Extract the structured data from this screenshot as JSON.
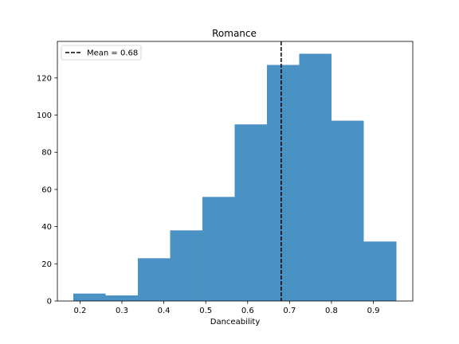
{
  "chart_data": {
    "type": "histogram",
    "title": "Romance",
    "xlabel": "Danceability",
    "ylabel": "",
    "xlim": [
      0.146,
      0.994
    ],
    "ylim": [
      0,
      139.65
    ],
    "xticks": [
      0.2,
      0.3,
      0.4,
      0.5,
      0.6,
      0.7,
      0.8,
      0.9
    ],
    "xtick_labels": [
      "0.2",
      "0.3",
      "0.4",
      "0.5",
      "0.6",
      "0.7",
      "0.8",
      "0.9"
    ],
    "yticks": [
      0,
      20,
      40,
      60,
      80,
      100,
      120
    ],
    "ytick_labels": [
      "0",
      "20",
      "40",
      "60",
      "80",
      "100",
      "120"
    ],
    "bins": [
      0.184,
      0.261,
      0.338,
      0.415,
      0.492,
      0.569,
      0.646,
      0.723,
      0.8,
      0.877,
      0.955
    ],
    "counts": [
      4,
      3,
      23,
      38,
      56,
      95,
      127,
      133,
      97,
      32
    ],
    "bar_color": "#4a91c4",
    "mean_line": {
      "x": 0.68,
      "label": "Mean = 0.68",
      "color": "#000000",
      "style": "dashed"
    },
    "legend": {
      "location": "upper-left"
    },
    "grid": false
  }
}
